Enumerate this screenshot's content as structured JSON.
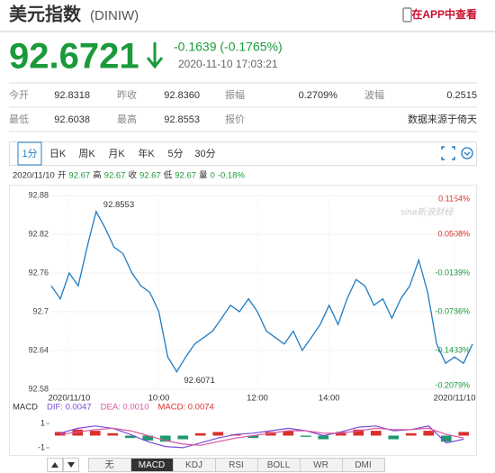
{
  "header": {
    "title": "美元指数",
    "code": "(DINIW)",
    "app_link": "在APP中查看"
  },
  "quote": {
    "price": "92.6721",
    "change": "-0.1639 (-0.1765%)",
    "time": "2020-11-10 17:03:21"
  },
  "stats": [
    [
      {
        "label": "今开",
        "value": "92.8318"
      },
      {
        "label": "昨收",
        "value": "92.8360"
      },
      {
        "label": "振幅",
        "value": "0.2709%"
      },
      {
        "label": "波幅",
        "value": "0.2515"
      }
    ],
    [
      {
        "label": "最低",
        "value": "92.6038"
      },
      {
        "label": "最高",
        "value": "92.8553"
      },
      {
        "label": "报价"
      },
      {
        "note": "数据来源于倚天"
      }
    ]
  ],
  "tabs": [
    "1分",
    "日K",
    "周K",
    "月K",
    "年K",
    "5分",
    "30分"
  ],
  "active_tab": 0,
  "info_bar": [
    {
      "label": "2020/11/10"
    },
    {
      "label": "开",
      "value": "92.67"
    },
    {
      "label": "高",
      "value": "92.67"
    },
    {
      "label": "收",
      "value": "92.67"
    },
    {
      "label": "低",
      "value": "92.67"
    },
    {
      "label": "量",
      "value": "0"
    },
    {
      "value": "-0.18%"
    }
  ],
  "watermark": "sina新浪财经",
  "chart_data": [
    {
      "type": "line",
      "color": "#1f7cc4",
      "categories": [
        null,
        null,
        null,
        null,
        null,
        null,
        null,
        null,
        null,
        null,
        null,
        null,
        null,
        null,
        null,
        null,
        null,
        null,
        null,
        null,
        null,
        null,
        null,
        null,
        null,
        null,
        null,
        null,
        null,
        null,
        null,
        null,
        null,
        null,
        null,
        null,
        null,
        null,
        null,
        null,
        null,
        null,
        null,
        null,
        null,
        null,
        null,
        null
      ],
      "values": [
        92.74,
        92.72,
        92.76,
        92.74,
        92.8,
        92.8553,
        92.83,
        92.8,
        92.79,
        92.76,
        92.74,
        92.73,
        92.7,
        92.63,
        92.6071,
        92.63,
        92.65,
        92.66,
        92.67,
        92.69,
        92.71,
        92.7,
        92.72,
        92.7,
        92.67,
        92.66,
        92.65,
        92.67,
        92.64,
        92.66,
        92.68,
        92.71,
        92.68,
        92.72,
        92.75,
        92.74,
        92.71,
        92.72,
        92.69,
        92.72,
        92.74,
        92.78,
        92.73,
        92.65,
        92.62,
        92.63,
        92.62,
        92.65
      ],
      "ylim": [
        92.58,
        92.88
      ],
      "yticks": [
        92.88,
        92.82,
        92.76,
        92.7,
        92.64,
        92.58
      ],
      "y2lim": [
        -0.2079,
        0.1154
      ],
      "y2ticks": [
        {
          "value": 0.1154,
          "label": "0.1154%"
        },
        {
          "value": 0.0508,
          "label": "0.0508%"
        },
        {
          "value": -0.0139,
          "label": "-0.0139%"
        },
        {
          "value": -0.0786,
          "label": "-0.0786%"
        },
        {
          "value": -0.1433,
          "label": "-0.1433%"
        },
        {
          "value": -0.2079,
          "label": "-0.2079%"
        }
      ],
      "xticks": [
        {
          "value": 2,
          "label": "2020/11/10"
        },
        {
          "value": 12,
          "label": "10:00"
        },
        {
          "value": 23,
          "label": "12:00"
        },
        {
          "value": 31,
          "label": "14:00"
        },
        {
          "value": 45,
          "label": "2020/11/10"
        }
      ],
      "annotations": [
        {
          "index": 5,
          "text": "92.8553"
        },
        {
          "index": 14,
          "text": "92.6071"
        }
      ],
      "grid": true
    },
    {
      "type": "macd",
      "up_color": "#d9302c",
      "down_color": "#1b9a6e",
      "name": "MACD",
      "dif_label": "DIF: 0.0047",
      "dea_label": "DEA: 0.0010",
      "macd_label": "MACD: 0.0074",
      "bars": [
        0.3,
        0.5,
        0.4,
        0.2,
        -0.2,
        -0.4,
        -0.5,
        -0.3,
        0.2,
        0.3,
        0.1,
        -0.2,
        0.3,
        0.4,
        -0.1,
        -0.3,
        0.3,
        0.5,
        0.4,
        -0.3,
        0.2,
        0.4,
        -0.5,
        0.3
      ],
      "dif": {
        "color": "#7b4bd6",
        "values": [
          0.2,
          0.6,
          0.8,
          0.6,
          0.1,
          -0.5,
          -0.9,
          -1.0,
          -0.6,
          -0.2,
          0.1,
          0.2,
          0.4,
          0.6,
          0.4,
          0.0,
          0.3,
          0.7,
          0.8,
          0.4,
          0.5,
          0.8,
          -0.6,
          -0.3
        ]
      },
      "dea": {
        "color": "#d9579f",
        "values": [
          0.1,
          0.3,
          0.5,
          0.6,
          0.4,
          0.0,
          -0.4,
          -0.7,
          -0.8,
          -0.5,
          -0.2,
          0.0,
          0.2,
          0.4,
          0.4,
          0.2,
          0.2,
          0.4,
          0.6,
          0.5,
          0.5,
          0.6,
          0.1,
          -0.2
        ]
      },
      "ylim": [
        -1.6,
        1.6
      ],
      "yticks": [
        1,
        -1
      ]
    }
  ],
  "indicator_tabs": [
    "无",
    "MACD",
    "KDJ",
    "RSI",
    "BOLL",
    "WR",
    "DMI"
  ],
  "active_indicator": 1
}
